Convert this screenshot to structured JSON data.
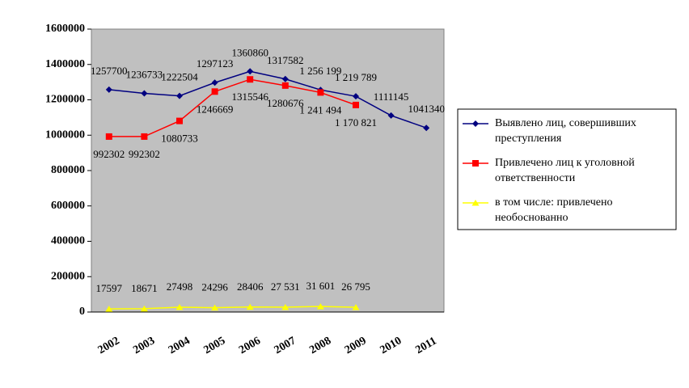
{
  "chart_data": {
    "type": "line",
    "categories": [
      "2002",
      "2003",
      "2004",
      "2005",
      "2006",
      "2007",
      "2008",
      "2009",
      "2010",
      "2011"
    ],
    "series": [
      {
        "name": "Выявлено лиц, совершивших преступления",
        "color": "#000080",
        "marker": "diamond",
        "values": [
          1257700,
          1236733,
          1222504,
          1297123,
          1360860,
          1317582,
          1256199,
          1219789,
          1111145,
          1041340
        ],
        "value_labels": [
          "1257700",
          "1236733",
          "1222504",
          "1297123",
          "1360860",
          "1317582",
          "1 256 199",
          "1 219 789",
          "1111145",
          "1041340"
        ]
      },
      {
        "name": "Привлечено лиц к уголовной ответственности",
        "color": "#ff0000",
        "marker": "square",
        "values": [
          992302,
          992302,
          1080733,
          1246669,
          1315546,
          1280676,
          1241494,
          1170821,
          null,
          null
        ],
        "value_labels": [
          "992302",
          "992302",
          "1080733",
          "1246669",
          "1315546",
          "1280676",
          "1 241 494",
          "1 170 821",
          null,
          null
        ]
      },
      {
        "name": "в том числе: привлечено необоснованно",
        "color": "#ffff00",
        "marker": "triangle",
        "values": [
          17597,
          18671,
          27498,
          24296,
          28406,
          27531,
          31601,
          26795,
          null,
          null
        ],
        "value_labels": [
          "17597",
          "18671",
          "27498",
          "24296",
          "28406",
          "27 531",
          "31 601",
          "26 795",
          null,
          null
        ]
      }
    ],
    "ylim": [
      0,
      1600000
    ],
    "yticks": [
      0,
      200000,
      400000,
      600000,
      800000,
      1000000,
      1200000,
      1400000,
      1600000
    ],
    "legend": "right"
  }
}
